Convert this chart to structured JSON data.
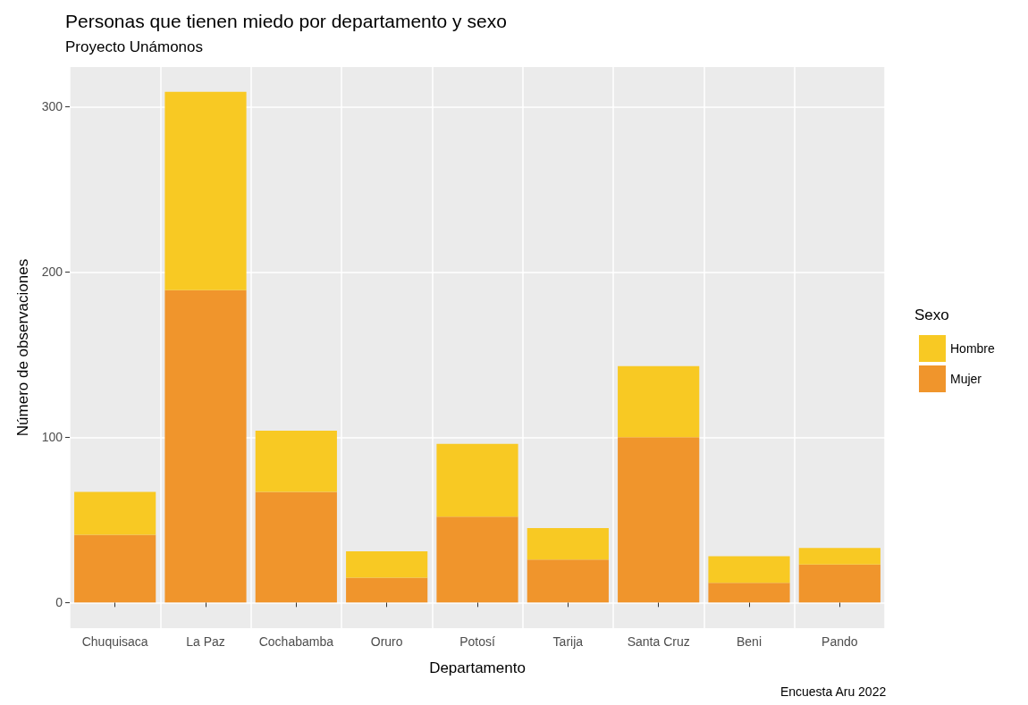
{
  "chart_data": {
    "type": "bar",
    "title": "Personas que tienen miedo por departamento y sexo",
    "subtitle": "Proyecto Unámonos",
    "xlabel": "Departamento",
    "ylabel": "Número de observaciones",
    "legend_title": "Sexo",
    "annotations": [
      "Encuesta Aru 2022"
    ],
    "categories": [
      "Chuquisaca",
      "La Paz",
      "Cochabamba",
      "Oruro",
      "Potosí",
      "Tarija",
      "Santa Cruz",
      "Beni",
      "Pando"
    ],
    "stacked": true,
    "series": [
      {
        "name": "Mujer",
        "color": "#f0952c",
        "values": [
          41,
          189,
          67,
          15,
          52,
          26,
          100,
          12,
          23
        ]
      },
      {
        "name": "Hombre",
        "color": "#f8c923",
        "values": [
          26,
          120,
          37,
          16,
          44,
          19,
          43,
          16,
          10
        ]
      }
    ],
    "ylim": [
      -15.5,
      324
    ],
    "yticks": [
      0,
      100,
      200,
      300
    ],
    "grid": true,
    "legend": "right"
  }
}
